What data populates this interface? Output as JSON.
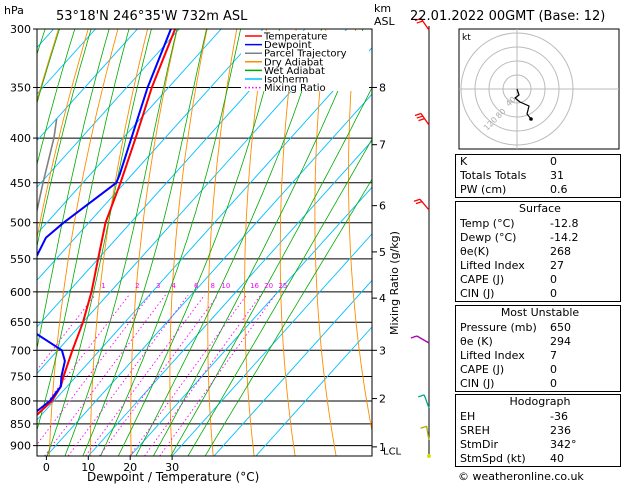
{
  "header": {
    "location": "53°18'N  246°35'W  732m  ASL",
    "datetime": "22.01.2022  00GMT  (Base: 12)"
  },
  "chart_data": {
    "type": "line",
    "title": "53°18'N  246°35'W  732m  ASL",
    "xlabel": "Dewpoint / Temperature (°C)",
    "ylabel": "hPa",
    "xlim": [
      -40,
      38
    ],
    "ylim": [
      925,
      300
    ],
    "y_scale": "log-pressure",
    "skew": "skew-T (≈45°)",
    "x_ticks": [
      "-40",
      "-30",
      "-20",
      "-10",
      "0",
      "10",
      "20",
      "30"
    ],
    "pressure_levels": [
      300,
      350,
      400,
      450,
      500,
      550,
      600,
      650,
      700,
      750,
      800,
      850,
      900
    ],
    "km_axis": {
      "label": "km\nASL",
      "ticks": [
        {
          "km": "8",
          "p": 350
        },
        {
          "km": "7",
          "p": 407
        },
        {
          "km": "6",
          "p": 478
        },
        {
          "km": "5",
          "p": 540
        },
        {
          "km": "4",
          "p": 610
        },
        {
          "km": "3",
          "p": 700
        },
        {
          "km": "2",
          "p": 795
        },
        {
          "km": "1",
          "p": 903
        }
      ],
      "lcl": {
        "label": "LCL",
        "p": 912
      }
    },
    "mixing_ratio_label": "Mixing Ratio (g/kg)",
    "mixing_ratio_values": [
      "1",
      "2",
      "3",
      "4",
      "6",
      "8",
      "10",
      "16",
      "20",
      "25"
    ],
    "legend": {
      "placement": "top-left",
      "entries": [
        {
          "name": "Temperature",
          "color": "#ff0000",
          "style": "solid"
        },
        {
          "name": "Dewpoint",
          "color": "#0000ff",
          "style": "solid"
        },
        {
          "name": "Parcel Trajectory",
          "color": "#808080",
          "style": "solid"
        },
        {
          "name": "Dry Adiabat",
          "color": "#ff8c00",
          "style": "solid"
        },
        {
          "name": "Wet Adiabat",
          "color": "#00aa00",
          "style": "solid"
        },
        {
          "name": "Isotherm",
          "color": "#00bfff",
          "style": "solid"
        },
        {
          "name": "Mixing Ratio",
          "color": "#ff00ff",
          "style": "dotted"
        }
      ]
    },
    "series": [
      {
        "name": "Temperature",
        "color": "#ff0000",
        "points": [
          [
            920,
            -12.8
          ],
          [
            900,
            -12.5
          ],
          [
            850,
            -11.5
          ],
          [
            800,
            -10.5
          ],
          [
            770,
            -11.5
          ],
          [
            750,
            -13
          ],
          [
            700,
            -16.5
          ],
          [
            650,
            -20
          ],
          [
            600,
            -24.5
          ],
          [
            550,
            -30
          ],
          [
            500,
            -36
          ],
          [
            450,
            -41
          ],
          [
            400,
            -47
          ],
          [
            350,
            -54
          ],
          [
            300,
            -61
          ]
        ]
      },
      {
        "name": "Dewpoint",
        "color": "#0000ff",
        "points": [
          [
            920,
            -14.2
          ],
          [
            900,
            -14.5
          ],
          [
            850,
            -13
          ],
          [
            800,
            -11
          ],
          [
            770,
            -11.5
          ],
          [
            750,
            -13.5
          ],
          [
            720,
            -16
          ],
          [
            700,
            -19
          ],
          [
            660,
            -32
          ],
          [
            650,
            -36
          ],
          [
            600,
            -41
          ],
          [
            550,
            -45
          ],
          [
            520,
            -47
          ],
          [
            500,
            -46
          ],
          [
            450,
            -42
          ],
          [
            440,
            -43
          ],
          [
            400,
            -48
          ],
          [
            350,
            -55
          ],
          [
            300,
            -62
          ]
        ]
      },
      {
        "name": "Parcel Trajectory",
        "color": "#808080",
        "points": [
          [
            920,
            -12.8
          ],
          [
            912,
            -13.8
          ],
          [
            850,
            -18
          ],
          [
            800,
            -22
          ],
          [
            750,
            -26.5
          ],
          [
            700,
            -31
          ],
          [
            650,
            -36
          ],
          [
            600,
            -41.5
          ],
          [
            550,
            -47
          ],
          [
            500,
            -53
          ],
          [
            450,
            -59.5
          ],
          [
            400,
            -66.5
          ],
          [
            380,
            -70
          ]
        ]
      }
    ]
  },
  "hodograph": {
    "unit_label": "kt",
    "ring_labels": [
      "40",
      "80",
      "120"
    ]
  },
  "indices": {
    "basic": [
      {
        "label": "K",
        "value": "0"
      },
      {
        "label": "Totals Totals",
        "value": "31"
      },
      {
        "label": "PW (cm)",
        "value": "0.6"
      }
    ],
    "surface": {
      "title": "Surface",
      "rows": [
        {
          "label": "Temp (°C)",
          "value": "-12.8"
        },
        {
          "label": "Dewp (°C)",
          "value": "-14.2"
        },
        {
          "label": "θe(K)",
          "value": "268"
        },
        {
          "label": "Lifted Index",
          "value": "27"
        },
        {
          "label": "CAPE (J)",
          "value": "0"
        },
        {
          "label": "CIN (J)",
          "value": "0"
        }
      ]
    },
    "most_unstable": {
      "title": "Most Unstable",
      "rows": [
        {
          "label": "Pressure (mb)",
          "value": "650"
        },
        {
          "label": "θe (K)",
          "value": "294"
        },
        {
          "label": "Lifted Index",
          "value": "7"
        },
        {
          "label": "CAPE (J)",
          "value": "0"
        },
        {
          "label": "CIN (J)",
          "value": "0"
        }
      ]
    },
    "hodograph": {
      "title": "Hodograph",
      "rows": [
        {
          "label": "EH",
          "value": "-36"
        },
        {
          "label": "SREH",
          "value": "236"
        },
        {
          "label": "StmDir",
          "value": "342°"
        },
        {
          "label": "StmSpd (kt)",
          "value": "40"
        }
      ]
    }
  },
  "footer": {
    "copyright": "© weatheronline.co.uk"
  },
  "colors": {
    "temperature": "#ff0000",
    "dewpoint": "#0000ff",
    "parcel": "#808080",
    "dry_adiabat": "#ff8c00",
    "wet_adiabat": "#00aa00",
    "isotherm": "#00bfff",
    "mixing_ratio": "#ff00ff",
    "wind_barbs": "#ff0000"
  }
}
